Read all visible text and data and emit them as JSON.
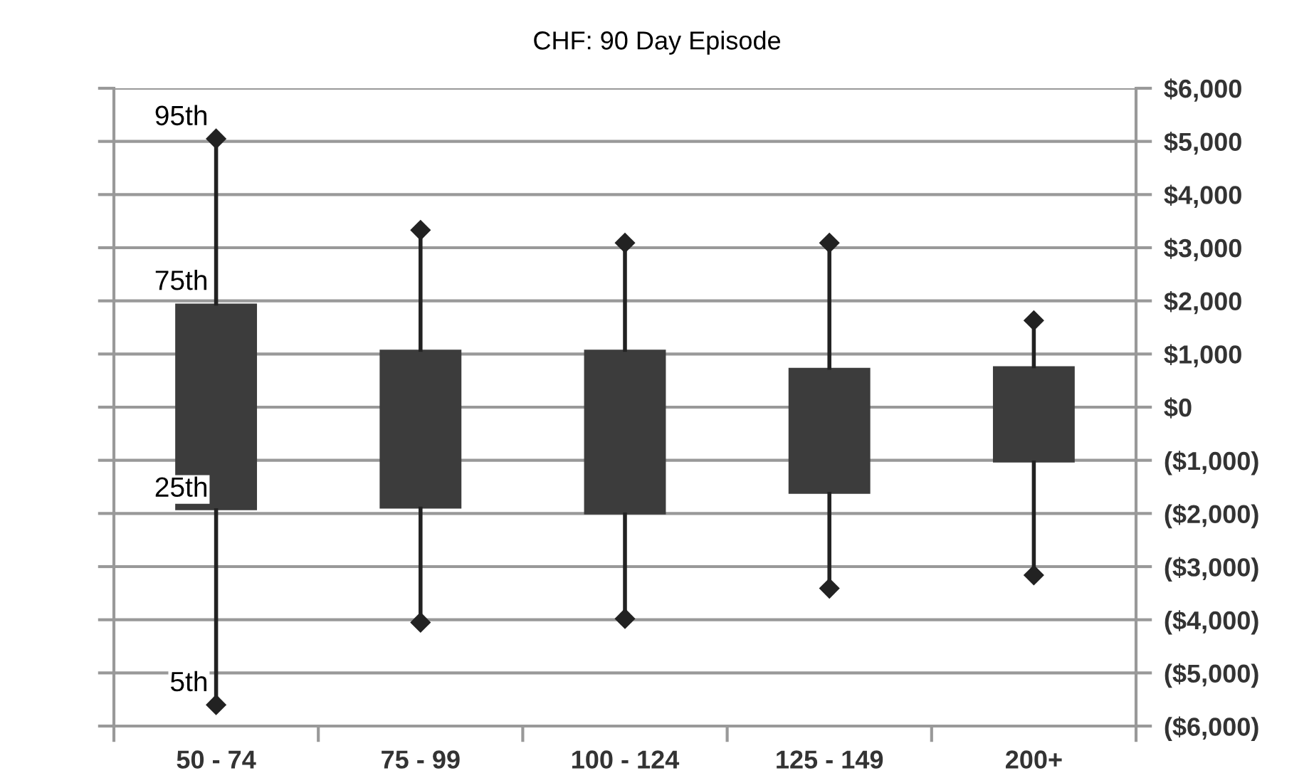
{
  "chart_data": {
    "type": "box",
    "title": "CHF: 90 Day Episode",
    "categories": [
      "50 - 74",
      "75 - 99",
      "100 - 124",
      "125 - 149",
      "200+"
    ],
    "boxes": [
      {
        "low": -5600,
        "q1": -1940,
        "q3": 1950,
        "high": 5050
      },
      {
        "low": -4050,
        "q1": -1910,
        "q3": 1080,
        "high": 3330
      },
      {
        "low": -3980,
        "q1": -2020,
        "q3": 1080,
        "high": 3090
      },
      {
        "low": -3410,
        "q1": -1630,
        "q3": 740,
        "high": 3090
      },
      {
        "low": -3160,
        "q1": -1040,
        "q3": 770,
        "high": 1630
      }
    ],
    "series": [
      {
        "type": "scatter",
        "color": "#222222",
        "x": [
          "50 - 74",
          "75 - 99",
          "100 - 124",
          "125 - 149",
          "200+",
          "50 - 74",
          "75 - 99",
          "100 - 124",
          "125 - 149",
          "200+"
        ],
        "values": [
          5050,
          3330,
          3090,
          3090,
          1630,
          -5600,
          -4050,
          -3980,
          -3410,
          -3160
        ]
      }
    ],
    "color": "#3c3c3c",
    "marker": "diamond",
    "ylim": [
      -6000,
      6000
    ],
    "yticks": [
      {
        "value": 6000,
        "label": "$6,000"
      },
      {
        "value": 5000,
        "label": "$5,000"
      },
      {
        "value": 4000,
        "label": "$4,000"
      },
      {
        "value": 3000,
        "label": "$3,000"
      },
      {
        "value": 2000,
        "label": "$2,000"
      },
      {
        "value": 1000,
        "label": "$1,000"
      },
      {
        "value": 0,
        "label": "$0"
      },
      {
        "value": -1000,
        "label": "($1,000)"
      },
      {
        "value": -2000,
        "label": "($2,000)"
      },
      {
        "value": -3000,
        "label": "($3,000)"
      },
      {
        "value": -4000,
        "label": "($4,000)"
      },
      {
        "value": -5000,
        "label": "($5,000)"
      },
      {
        "value": -6000,
        "label": "($6,000)"
      }
    ],
    "grid": "y",
    "annotations": [
      {
        "text": "95th",
        "x": "50 - 74",
        "y": 5050
      },
      {
        "text": "75th",
        "x": "50 - 74",
        "y": 1950
      },
      {
        "text": "25th",
        "x": "50 - 74",
        "y": -1940
      },
      {
        "text": "5th",
        "x": "50 - 74",
        "y": -5600
      }
    ]
  }
}
